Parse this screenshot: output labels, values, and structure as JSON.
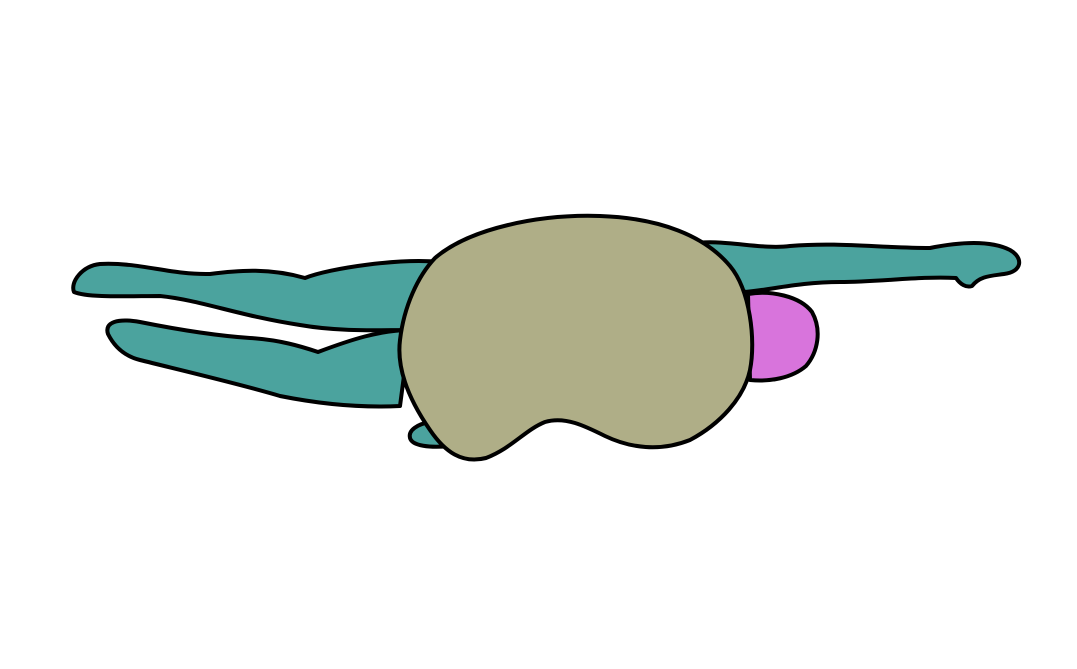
{
  "scene": {
    "subject": "swimmer-silhouette",
    "colors": {
      "background": "#ffffff",
      "outline": "#000000",
      "limbs": "#4ba39e",
      "body_blob": "#afae87",
      "swim_cap": "#d874dc"
    }
  }
}
